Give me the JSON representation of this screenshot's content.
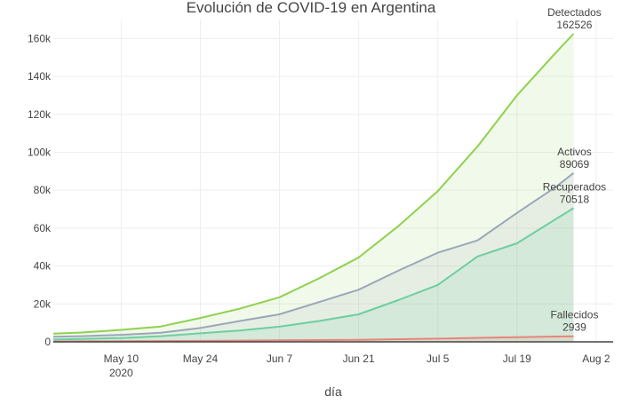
{
  "chart_data": {
    "type": "area",
    "title": "Evolución de COVID-19 en Argentina",
    "xlabel": "día",
    "ylabel": "",
    "xlim": [
      "2020-04-28",
      "2020-08-05"
    ],
    "ylim": [
      0,
      170000
    ],
    "grid": true,
    "x_ticks": [
      {
        "date": "2020-05-10",
        "label": "May 10",
        "sublabel": "2020"
      },
      {
        "date": "2020-05-24",
        "label": "May 24",
        "sublabel": ""
      },
      {
        "date": "2020-06-07",
        "label": "Jun 7",
        "sublabel": ""
      },
      {
        "date": "2020-06-21",
        "label": "Jun 21",
        "sublabel": ""
      },
      {
        "date": "2020-07-05",
        "label": "Jul 5",
        "sublabel": ""
      },
      {
        "date": "2020-07-19",
        "label": "Jul 19",
        "sublabel": ""
      },
      {
        "date": "2020-08-02",
        "label": "Aug 2",
        "sublabel": ""
      }
    ],
    "y_ticks": [
      {
        "value": 0,
        "label": "0"
      },
      {
        "value": 20000,
        "label": "20k"
      },
      {
        "value": 40000,
        "label": "40k"
      },
      {
        "value": 60000,
        "label": "60k"
      },
      {
        "value": 80000,
        "label": "80k"
      },
      {
        "value": 100000,
        "label": "100k"
      },
      {
        "value": 120000,
        "label": "120k"
      },
      {
        "value": 140000,
        "label": "140k"
      },
      {
        "value": 160000,
        "label": "160k"
      }
    ],
    "x": [
      "2020-04-28",
      "2020-05-03",
      "2020-05-10",
      "2020-05-17",
      "2020-05-24",
      "2020-05-31",
      "2020-06-07",
      "2020-06-14",
      "2020-06-21",
      "2020-06-28",
      "2020-07-05",
      "2020-07-12",
      "2020-07-19",
      "2020-07-26",
      "2020-07-29"
    ],
    "series": [
      {
        "name": "Detectados",
        "last_label": "162526",
        "color": "#8fd14f",
        "fill": "rgba(143,209,79,0.12)",
        "values": [
          4300,
          4900,
          6300,
          8100,
          12600,
          17500,
          23500,
          33500,
          44500,
          61000,
          79500,
          103000,
          130000,
          153000,
          162526
        ]
      },
      {
        "name": "Activos",
        "last_label": "89069",
        "color": "#9aa7b8",
        "fill": "rgba(154,167,184,0.12)",
        "values": [
          2700,
          3000,
          3700,
          4800,
          7300,
          11000,
          14500,
          21000,
          27500,
          37500,
          47000,
          53500,
          68000,
          82000,
          89069
        ]
      },
      {
        "name": "Recuperados",
        "last_label": "70518",
        "color": "#6ccf9f",
        "fill": "rgba(108,207,159,0.14)",
        "values": [
          1200,
          1500,
          2000,
          3000,
          4500,
          6000,
          8000,
          11000,
          14500,
          22000,
          30000,
          45000,
          52000,
          65000,
          70518
        ]
      },
      {
        "name": "Fallecidos",
        "last_label": "2939",
        "color": "#e8847c",
        "fill": "rgba(232,132,124,0.15)",
        "values": [
          200,
          260,
          340,
          430,
          530,
          640,
          780,
          920,
          1100,
          1400,
          1700,
          2100,
          2500,
          2800,
          2939
        ]
      }
    ]
  }
}
